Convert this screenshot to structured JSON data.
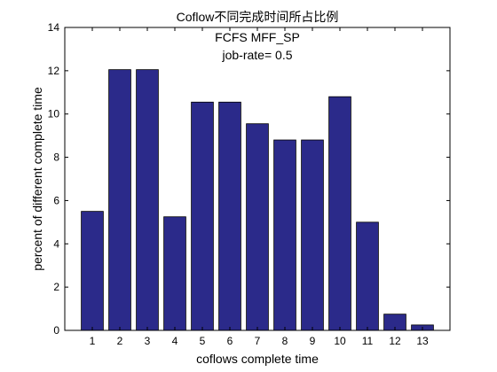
{
  "chart_data": {
    "type": "bar",
    "title": "Coflow不同完成时间所占比例",
    "annotations": [
      "FCFS MFF_SP",
      "job-rate= 0.5"
    ],
    "xlabel": "coflows complete time",
    "ylabel": "percent of different complete time",
    "categories": [
      "1",
      "2",
      "3",
      "4",
      "5",
      "6",
      "7",
      "8",
      "9",
      "10",
      "11",
      "12",
      "13"
    ],
    "values": [
      5.5,
      12.05,
      12.05,
      5.25,
      10.55,
      10.55,
      9.55,
      8.8,
      8.8,
      10.8,
      5.0,
      0.75,
      0.25
    ],
    "ylim": [
      0,
      14
    ],
    "yticks": [
      0,
      2,
      4,
      6,
      8,
      10,
      12,
      14
    ],
    "grid": false,
    "legend": "none",
    "bar_color": "#2b2a8a",
    "bar_edge_color": "#000000"
  }
}
